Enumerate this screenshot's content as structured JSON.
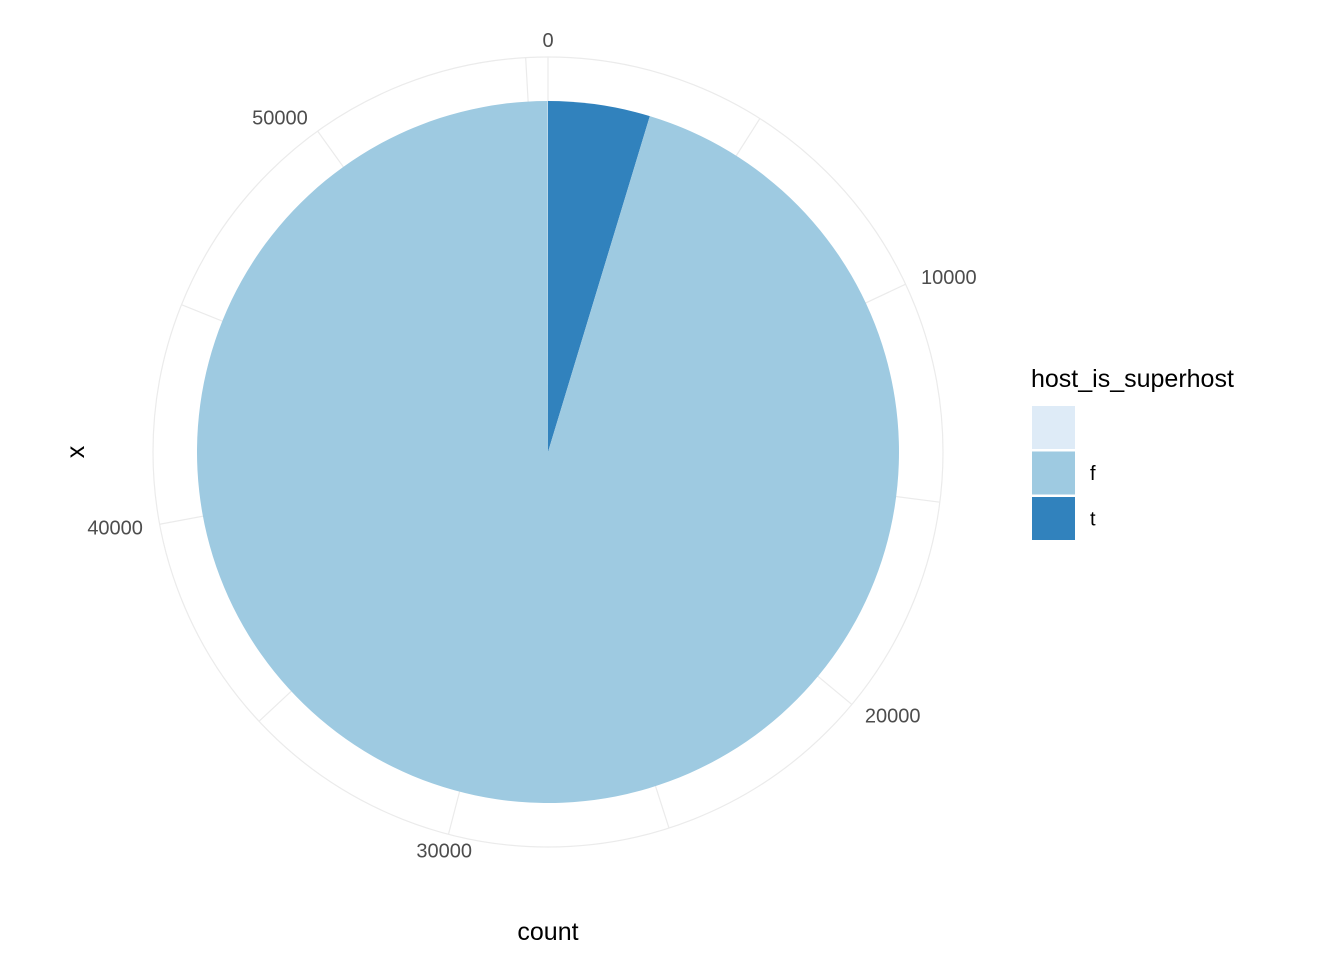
{
  "chart_data": {
    "type": "pie",
    "xlabel": "count",
    "ylabel": "x",
    "theta_ticks": [
      "0",
      "10000",
      "20000",
      "30000",
      "40000",
      "50000"
    ],
    "theta_tick_values": [
      0,
      10000,
      20000,
      30000,
      40000,
      50000
    ],
    "theta_total": 55500,
    "grid": true,
    "legend": {
      "title": "host_is_superhost",
      "position": "right",
      "entries": [
        {
          "label": "",
          "color": "#deebf7"
        },
        {
          "label": "f",
          "color": "#9ecae1"
        },
        {
          "label": "t",
          "color": "#3182bd"
        }
      ]
    },
    "slices": [
      {
        "category": "t",
        "value": 2600,
        "color": "#3182bd"
      },
      {
        "category": "f",
        "value": 52890,
        "color": "#9ecae1"
      },
      {
        "category": "",
        "value": 10,
        "color": "#deebf7"
      }
    ]
  }
}
